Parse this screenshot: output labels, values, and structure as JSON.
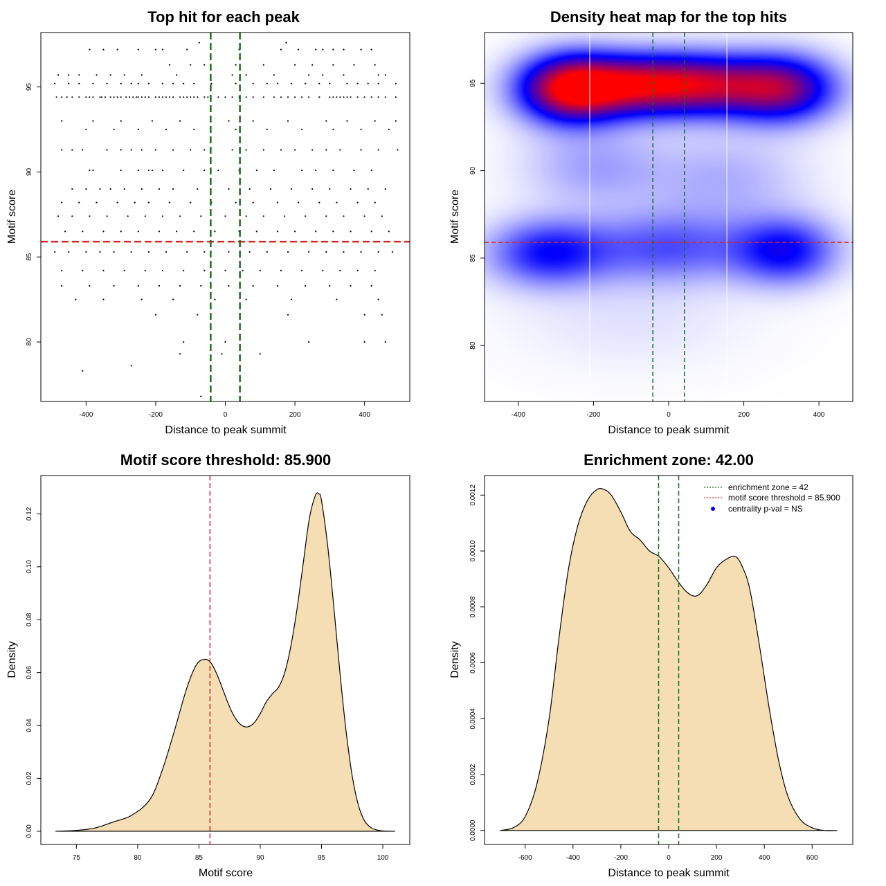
{
  "colors": {
    "threshold_line": "#d62728",
    "zone_line": "#1a6b1a",
    "fill": "#f5deb3",
    "density_outline": "#000000",
    "heat_low": "#ffffff",
    "heat_mid": "#0000ff",
    "heat_high": "#ff0000",
    "legend_dot": "#0000ff"
  },
  "chart_data": [
    {
      "id": "scatter",
      "type": "scatter",
      "title": "Top hit for each peak",
      "xlabel": "Distance to peak summit",
      "ylabel": "Motif score",
      "xlim": [
        -530,
        530
      ],
      "ylim": [
        76.5,
        98.2
      ],
      "xticks": [
        "-400",
        "-200",
        "0",
        "200",
        "400"
      ],
      "xtick_values": [
        -400,
        -200,
        0,
        200,
        400
      ],
      "yticks": [
        "80",
        "85",
        "90",
        "95"
      ],
      "ytick_values": [
        80,
        85,
        90,
        95
      ],
      "hline": 85.9,
      "vlines": [
        -42,
        42
      ],
      "point_rows": [
        {
          "y": 95.2,
          "x": [
            -490,
            -450,
            -420,
            -380,
            -340,
            -300,
            -270,
            -250,
            -220,
            -180,
            -150,
            -120,
            -90,
            -40,
            30,
            80,
            120,
            150,
            190,
            230,
            270,
            300,
            350,
            380,
            410,
            440,
            490
          ]
        },
        {
          "y": 94.4,
          "x": [
            -485,
            -470,
            -455,
            -440,
            -420,
            -400,
            -390,
            -380,
            -360,
            -355,
            -345,
            -330,
            -320,
            -310,
            -300,
            -285,
            -275,
            -265,
            -255,
            -250,
            -240,
            -230,
            -220,
            -200,
            -190,
            -180,
            -170,
            -160,
            -150,
            -130,
            -120,
            -110,
            -100,
            -90,
            -80,
            -60,
            -50,
            -20,
            0,
            20,
            40,
            60,
            80,
            110,
            140,
            160,
            180,
            200,
            220,
            240,
            270,
            300,
            310,
            320,
            330,
            340,
            350,
            360,
            380,
            400,
            420,
            440,
            460,
            490
          ]
        },
        {
          "y": 91.3,
          "x": [
            -470,
            -440,
            -410,
            -340,
            -300,
            -270,
            -240,
            -200,
            -150,
            -100,
            -60,
            20,
            60,
            110,
            160,
            200,
            250,
            290,
            330,
            390,
            440,
            495
          ]
        },
        {
          "y": 90.1,
          "x": [
            -390,
            -380,
            -300,
            -250,
            -220,
            -210,
            -180,
            -120,
            -60,
            -20,
            40,
            90,
            140,
            220,
            260,
            310,
            370,
            420
          ]
        },
        {
          "y": 89.0,
          "x": [
            -440,
            -400,
            -360,
            -330,
            -290,
            -240,
            -190,
            -150,
            -80,
            10,
            70,
            130,
            190,
            250,
            300,
            360,
            410,
            460
          ]
        },
        {
          "y": 88.2,
          "x": [
            -470,
            -420,
            -370,
            -310,
            -260,
            -220,
            -160,
            -100,
            -40,
            30,
            80,
            150,
            210,
            270,
            320,
            380,
            430
          ]
        },
        {
          "y": 87.4,
          "x": [
            -480,
            -440,
            -390,
            -340,
            -280,
            -230,
            -180,
            -130,
            -70,
            0,
            60,
            110,
            170,
            230,
            290,
            340,
            400,
            450
          ]
        },
        {
          "y": 86.5,
          "x": [
            -460,
            -410,
            -350,
            -300,
            -250,
            -190,
            -140,
            -90,
            -30,
            40,
            90,
            150,
            200,
            260,
            310,
            360,
            420,
            470
          ]
        },
        {
          "y": 85.3,
          "x": [
            -490,
            -450,
            -400,
            -360,
            -320,
            -270,
            -220,
            -170,
            -110,
            -60,
            10,
            70,
            120,
            180,
            240,
            290,
            340,
            390,
            440,
            480
          ]
        },
        {
          "y": 84.2,
          "x": [
            -470,
            -410,
            -350,
            -290,
            -230,
            -180,
            -120,
            -60,
            0,
            50,
            100,
            160,
            220,
            280,
            330,
            380,
            430
          ]
        },
        {
          "y": 83.3,
          "x": [
            -470,
            -390,
            -320,
            -250,
            -190,
            -130,
            -70,
            10,
            80,
            150,
            230,
            300,
            360,
            420
          ]
        },
        {
          "y": 82.5,
          "x": [
            -430,
            -350,
            -240,
            -150,
            -30,
            60,
            190,
            320,
            440
          ]
        },
        {
          "y": 81.6,
          "x": [
            -200,
            -80,
            180,
            400,
            450
          ]
        },
        {
          "y": 80.0,
          "x": [
            -120,
            0,
            240,
            400,
            460
          ]
        },
        {
          "y": 79.3,
          "x": [
            -130,
            -10,
            100
          ]
        },
        {
          "y": 78.6,
          "x": [
            -270
          ]
        },
        {
          "y": 78.3,
          "x": [
            -410
          ]
        },
        {
          "y": 76.8,
          "x": [
            -70
          ]
        },
        {
          "y": 97.2,
          "x": [
            -390,
            -350,
            -310,
            -250,
            -200,
            -180,
            -110,
            40,
            160,
            210,
            260,
            280,
            310,
            340,
            390,
            420
          ]
        },
        {
          "y": 96.3,
          "x": [
            -160,
            -100,
            -60,
            30,
            110,
            200,
            250,
            310,
            370,
            430
          ]
        },
        {
          "y": 95.7,
          "x": [
            -480,
            -450,
            -420,
            -370,
            -330,
            -290,
            -240,
            -140,
            20,
            60,
            140,
            240,
            280,
            340,
            440,
            460
          ]
        },
        {
          "y": 93.0,
          "x": [
            -470,
            -380,
            -300,
            -210,
            -130,
            10,
            80,
            180,
            290,
            350,
            430,
            490
          ]
        },
        {
          "y": 92.5,
          "x": [
            -400,
            -320,
            -250,
            -170,
            -90,
            30,
            120,
            220,
            310,
            390,
            470
          ]
        },
        {
          "y": 97.6,
          "x": [
            -75,
            175
          ]
        }
      ]
    },
    {
      "id": "heatmap",
      "type": "heatmap",
      "title": "Density heat map for the top hits",
      "xlabel": "Distance to peak summit",
      "ylabel": "Motif score",
      "xlim": [
        -490,
        490
      ],
      "ylim": [
        76.8,
        97.9
      ],
      "xticks": [
        "-400",
        "-200",
        "0",
        "200",
        "400"
      ],
      "xtick_values": [
        -400,
        -200,
        0,
        200,
        400
      ],
      "yticks": [
        "80",
        "85",
        "90",
        "95"
      ],
      "ytick_values": [
        80,
        85,
        90,
        95
      ],
      "hline": 85.9,
      "vlines": [
        -42,
        42
      ],
      "white_vlines": [
        -210,
        155
      ],
      "density_blobs": [
        {
          "x": -260,
          "y": 94.7,
          "sx": 95,
          "sy": 1.3,
          "w": 1.0
        },
        {
          "x": -80,
          "y": 94.9,
          "sx": 110,
          "sy": 1.2,
          "w": 0.72
        },
        {
          "x": 100,
          "y": 94.9,
          "sx": 110,
          "sy": 1.2,
          "w": 0.66
        },
        {
          "x": 300,
          "y": 94.7,
          "sx": 100,
          "sy": 1.3,
          "w": 0.72
        },
        {
          "x": -320,
          "y": 85.3,
          "sx": 110,
          "sy": 1.3,
          "w": 0.42
        },
        {
          "x": 0,
          "y": 85.6,
          "sx": 150,
          "sy": 1.4,
          "w": 0.3
        },
        {
          "x": 310,
          "y": 85.4,
          "sx": 95,
          "sy": 1.3,
          "w": 0.44
        },
        {
          "x": -200,
          "y": 90.2,
          "sx": 130,
          "sy": 1.6,
          "w": 0.16
        },
        {
          "x": 150,
          "y": 89.5,
          "sx": 150,
          "sy": 1.8,
          "w": 0.14
        },
        {
          "x": -100,
          "y": 81.5,
          "sx": 220,
          "sy": 2.0,
          "w": 0.05
        }
      ]
    },
    {
      "id": "score-density",
      "type": "area",
      "title": "Motif score threshold: 85.900",
      "xlabel": "Motif score",
      "ylabel": "Density",
      "xlim": [
        72.1,
        102.2
      ],
      "ylim": [
        -0.005,
        0.1345
      ],
      "xticks": [
        "75",
        "80",
        "85",
        "90",
        "95",
        "100"
      ],
      "xtick_values": [
        75,
        80,
        85,
        90,
        95,
        100
      ],
      "yticks": [
        "0.00",
        "0.02",
        "0.04",
        "0.06",
        "0.08",
        "0.10",
        "0.12"
      ],
      "ytick_values": [
        0,
        0.02,
        0.04,
        0.06,
        0.08,
        0.1,
        0.12
      ],
      "vline": 85.9,
      "x": [
        73.3,
        75,
        76.5,
        78,
        79.5,
        81,
        82,
        83,
        84,
        84.8,
        85.5,
        86,
        86.5,
        87,
        87.5,
        88,
        88.5,
        89,
        89.5,
        90,
        90.5,
        91,
        91.5,
        92,
        92.5,
        93,
        93.5,
        94,
        94.5,
        94.8,
        95,
        95.5,
        96,
        96.5,
        97,
        97.5,
        98,
        98.5,
        99,
        99.5,
        100,
        101
      ],
      "y": [
        0.0,
        0.0003,
        0.0012,
        0.0035,
        0.006,
        0.012,
        0.023,
        0.038,
        0.054,
        0.063,
        0.065,
        0.0635,
        0.059,
        0.053,
        0.047,
        0.0425,
        0.04,
        0.0395,
        0.041,
        0.0445,
        0.049,
        0.052,
        0.0545,
        0.06,
        0.07,
        0.084,
        0.101,
        0.118,
        0.127,
        0.1275,
        0.125,
        0.108,
        0.085,
        0.06,
        0.038,
        0.021,
        0.01,
        0.004,
        0.0015,
        0.0005,
        0.0001,
        0.0
      ]
    },
    {
      "id": "distance-density",
      "type": "area",
      "title": "Enrichment zone: 42.00",
      "xlabel": "Distance to peak summit",
      "ylabel": "Density",
      "xlim": [
        -770,
        770
      ],
      "ylim": [
        -5e-05,
        0.00127
      ],
      "xticks": [
        "-600",
        "-400",
        "-200",
        "0",
        "200",
        "400",
        "600"
      ],
      "xtick_values": [
        -600,
        -400,
        -200,
        0,
        200,
        400,
        600
      ],
      "yticks": [
        "0.0000",
        "0.0002",
        "0.0004",
        "0.0006",
        "0.0008",
        "0.0010",
        "0.0012"
      ],
      "ytick_values": [
        0,
        0.0002,
        0.0004,
        0.0006,
        0.0008,
        0.001,
        0.0012
      ],
      "vlines": [
        -42,
        42
      ],
      "x": [
        -705,
        -650,
        -600,
        -550,
        -500,
        -460,
        -420,
        -380,
        -340,
        -300,
        -270,
        -240,
        -200,
        -160,
        -120,
        -80,
        -40,
        0,
        40,
        80,
        120,
        160,
        200,
        240,
        280,
        310,
        340,
        380,
        420,
        460,
        500,
        550,
        600,
        650,
        705
      ],
      "y": [
        0.0,
        1e-05,
        5e-05,
        0.00017,
        0.0004,
        0.00068,
        0.00093,
        0.00109,
        0.00118,
        0.00122,
        0.00122,
        0.0012,
        0.00114,
        0.00107,
        0.00104,
        0.001,
        0.00098,
        0.00094,
        0.00089,
        0.00085,
        0.00084,
        0.00088,
        0.00094,
        0.00097,
        0.00098,
        0.00094,
        0.00086,
        0.00066,
        0.00044,
        0.00025,
        0.00012,
        4e-05,
        1e-05,
        0.0,
        0.0
      ],
      "legend": [
        {
          "label": "enrichment zone = 42",
          "style": "dotted-green"
        },
        {
          "label": "motif score threshold = 85.900",
          "style": "dotted-red"
        },
        {
          "label": "centrality p-val = NS",
          "style": "dot-blue"
        }
      ]
    }
  ]
}
